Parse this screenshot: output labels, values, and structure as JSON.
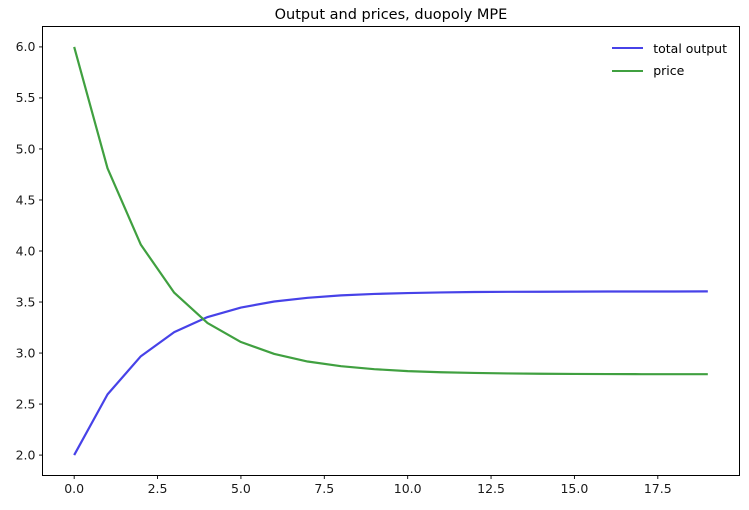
{
  "figure": {
    "background": "#ffffff",
    "text_color": "#000000"
  },
  "chart_data": {
    "type": "line",
    "title": "Output and prices, duopoly MPE",
    "xlabel": "",
    "ylabel": "",
    "grid": false,
    "legend_position": "upper right",
    "legend_frame": false,
    "xlim": [
      -0.95,
      19.95
    ],
    "ylim": [
      1.8,
      6.2
    ],
    "xticks": [
      {
        "value": 0.0,
        "label": "0.0"
      },
      {
        "value": 2.5,
        "label": "2.5"
      },
      {
        "value": 5.0,
        "label": "5.0"
      },
      {
        "value": 7.5,
        "label": "7.5"
      },
      {
        "value": 10.0,
        "label": "10.0"
      },
      {
        "value": 12.5,
        "label": "12.5"
      },
      {
        "value": 15.0,
        "label": "15.0"
      },
      {
        "value": 17.5,
        "label": "17.5"
      }
    ],
    "yticks": [
      {
        "value": 2.0,
        "label": "2.0"
      },
      {
        "value": 2.5,
        "label": "2.5"
      },
      {
        "value": 3.0,
        "label": "3.0"
      },
      {
        "value": 3.5,
        "label": "3.5"
      },
      {
        "value": 4.0,
        "label": "4.0"
      },
      {
        "value": 4.5,
        "label": "4.5"
      },
      {
        "value": 5.0,
        "label": "5.0"
      },
      {
        "value": 5.5,
        "label": "5.5"
      },
      {
        "value": 6.0,
        "label": "6.0"
      }
    ],
    "x": [
      0,
      1,
      2,
      3,
      4,
      5,
      6,
      7,
      8,
      9,
      10,
      11,
      12,
      13,
      14,
      15,
      16,
      17,
      18,
      19
    ],
    "series": [
      {
        "name": "total output",
        "color": "#4742e8",
        "linewidth": 2.2,
        "values": [
          2.0,
          2.595,
          2.969,
          3.205,
          3.353,
          3.446,
          3.505,
          3.541,
          3.565,
          3.579,
          3.588,
          3.594,
          3.598,
          3.6,
          3.601,
          3.602,
          3.603,
          3.603,
          3.603,
          3.604
        ]
      },
      {
        "name": "price",
        "color": "#40a040",
        "linewidth": 2.2,
        "values": [
          6.0,
          4.81,
          4.061,
          3.591,
          3.294,
          3.108,
          2.991,
          2.917,
          2.871,
          2.842,
          2.823,
          2.812,
          2.805,
          2.8,
          2.797,
          2.795,
          2.794,
          2.793,
          2.793,
          2.793
        ]
      }
    ]
  }
}
